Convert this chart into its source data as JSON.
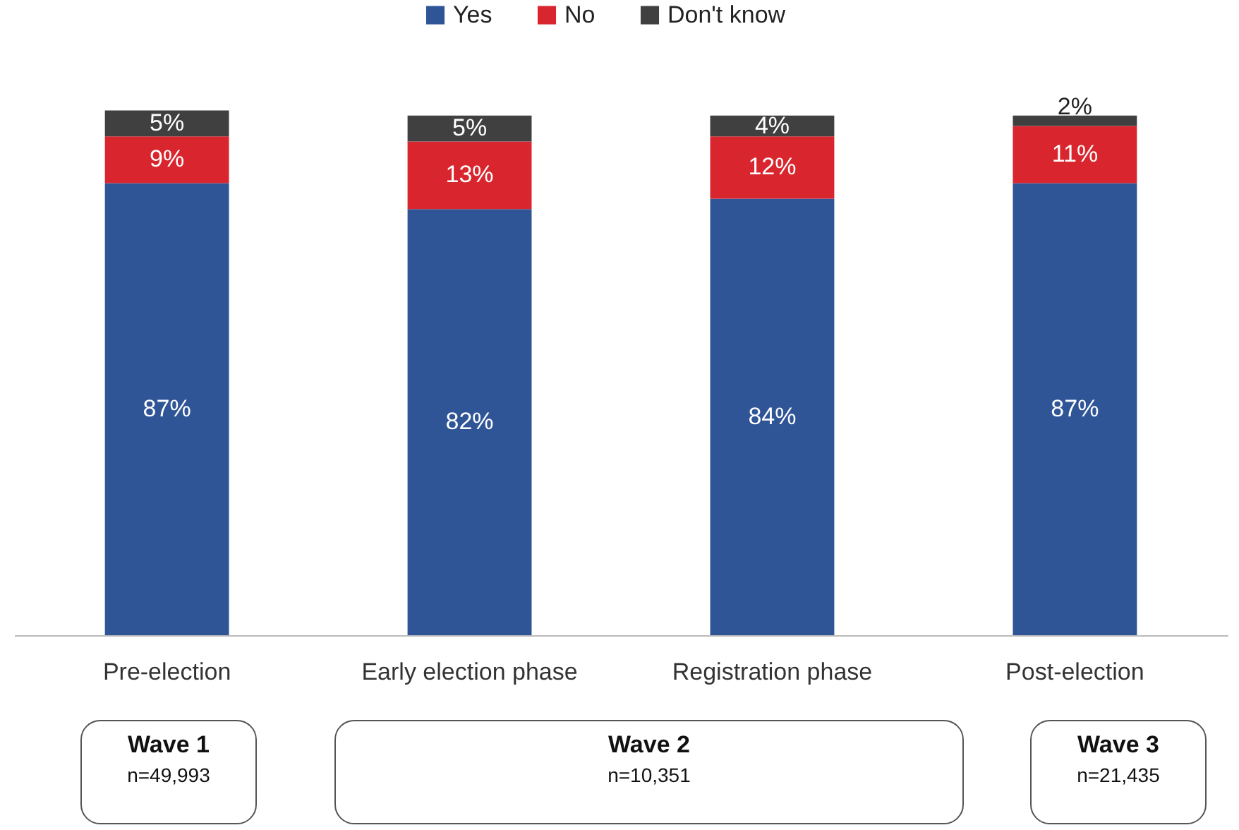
{
  "chart_data": {
    "type": "bar",
    "stacked": true,
    "legend": "top",
    "categories": [
      "Pre-election",
      "Early election phase",
      "Registration phase",
      "Post-election"
    ],
    "series": [
      {
        "name": "Yes",
        "color": "#2f5597",
        "values": [
          87,
          82,
          84,
          87
        ],
        "value_labels": [
          "87%",
          "82%",
          "84%",
          "87%"
        ]
      },
      {
        "name": "No",
        "color": "#d9262e",
        "values": [
          9,
          13,
          12,
          11
        ],
        "value_labels": [
          "9%",
          "13%",
          "12%",
          "11%"
        ]
      },
      {
        "name": "Don't know",
        "color": "#404040",
        "values": [
          5,
          5,
          4,
          2
        ],
        "value_labels": [
          "5%",
          "5%",
          "4%",
          "2%"
        ]
      }
    ],
    "annotations": [
      "Wave 1",
      "n=49,993",
      "Wave 2",
      "n=10,351",
      "Wave 3",
      "n=21,435"
    ]
  }
}
